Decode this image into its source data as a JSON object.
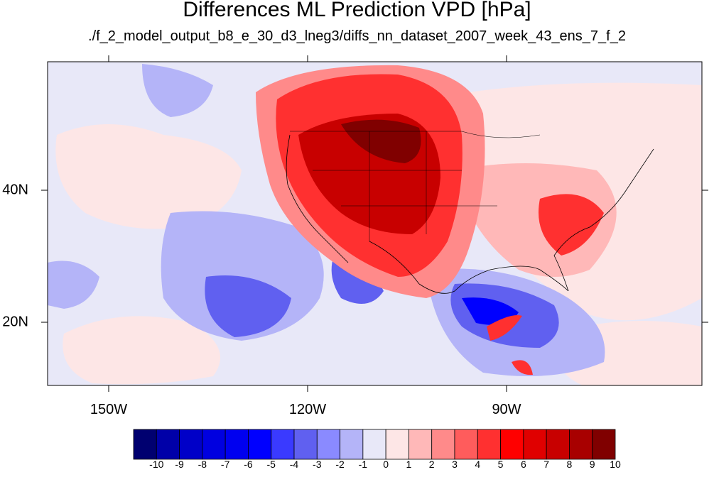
{
  "title": "Differences ML Prediction VPD [hPa]",
  "subtitle": "./f_2_model_output_b8_e_30_d3_lneg3/diffs_nn_dataset_2007_week_43_ens_7_f_2",
  "lon_labels": [
    "150W",
    "120W",
    "90W"
  ],
  "lat_labels": [
    "40N",
    "20N"
  ],
  "colorbar": {
    "labels": [
      "-10",
      "-9",
      "-8",
      "-7",
      "-6",
      "-5",
      "-4",
      "-3",
      "-2",
      "-1",
      "0",
      "1",
      "2",
      "3",
      "4",
      "5",
      "6",
      "7",
      "8",
      "9",
      "10"
    ],
    "colors": [
      "#000070",
      "#0000a8",
      "#0000c8",
      "#0000e0",
      "#0000f0",
      "#0000ff",
      "#3a3aff",
      "#6060f0",
      "#8a8aff",
      "#b4b4f8",
      "#e8e8f8",
      "#fde6e6",
      "#ffb8b8",
      "#ff8a8a",
      "#ff5c5c",
      "#ff3030",
      "#ff0000",
      "#e00000",
      "#c80000",
      "#a80000",
      "#800000"
    ]
  },
  "palette": {
    "white_blue": "#e8e8f8",
    "light_blue": "#b4b4f8",
    "mid_blue": "#6060f0",
    "deep_blue": "#0000ff",
    "pink": "#fde6e6",
    "light_red": "#ffb8b8",
    "red": "#ff3030",
    "deep_red": "#a80000"
  }
}
